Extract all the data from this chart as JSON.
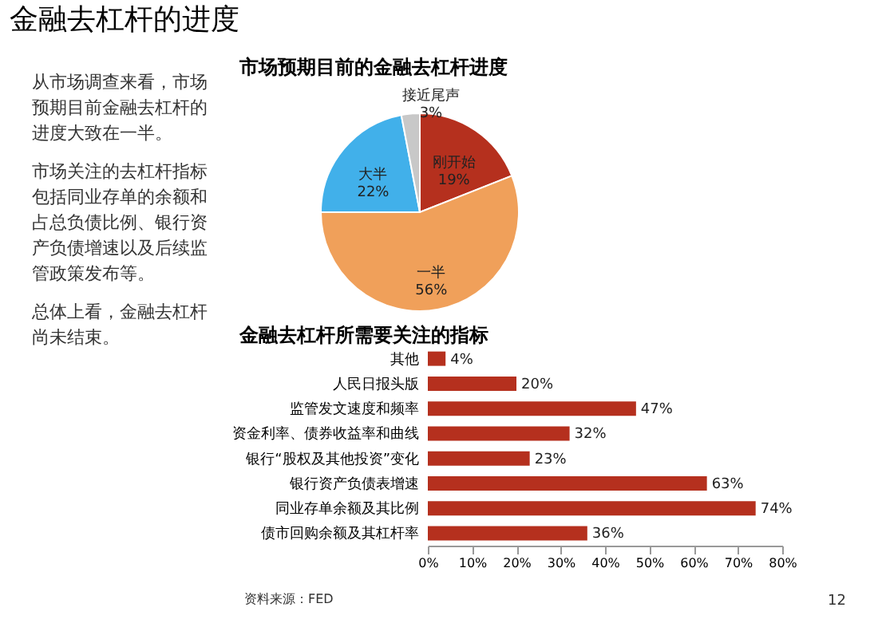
{
  "chart_data": [
    {
      "type": "other",
      "title": "金融去杠杆的进度",
      "annotations": [
        "从市场调查来看，市场预期目前金融去杠杆的进度大致在一半。",
        "市场关注的去杠杆指标包括同业存单的余额和占总负债比例、银行资产负债增速以及后续监管政策发布等。",
        "总体上看，金融去杠杆尚未结束。"
      ]
    },
    {
      "type": "pie",
      "title": "市场预期目前的金融去杠杆进度",
      "categories": [
        "刚开始",
        "一半",
        "大半",
        "接近尾声"
      ],
      "values": [
        19,
        56,
        22,
        3
      ],
      "colors": [
        "#b5301e",
        "#f0a05a",
        "#41b0ea",
        "#c8c8c8"
      ],
      "value_labels": [
        "19%",
        "56%",
        "22%",
        "3%"
      ]
    },
    {
      "type": "bar",
      "orientation": "horizontal",
      "title": "金融去杠杆所需要关注的指标",
      "categories": [
        "其他",
        "人民日报头版",
        "监管发文速度和频率",
        "资金利率、债券收益率和曲线",
        "银行“股权及其他投资”变化",
        "银行资产负债表增速",
        "同业存单余额及其比例",
        "债市回购余额及其杠杆率"
      ],
      "values": [
        4,
        20,
        47,
        32,
        23,
        63,
        74,
        36
      ],
      "color": "#b5301e",
      "value_labels": [
        "4%",
        "20%",
        "47%",
        "32%",
        "23%",
        "63%",
        "74%",
        "36%"
      ],
      "xlim": [
        0,
        80
      ],
      "xticks": [
        {
          "value": 0,
          "label": "0%"
        },
        {
          "value": 10,
          "label": "10%"
        },
        {
          "value": 20,
          "label": "20%"
        },
        {
          "value": 30,
          "label": "30%"
        },
        {
          "value": 40,
          "label": "40%"
        },
        {
          "value": 50,
          "label": "50%"
        },
        {
          "value": 60,
          "label": "60%"
        },
        {
          "value": 70,
          "label": "70%"
        },
        {
          "value": 80,
          "label": "80%"
        }
      ],
      "grid": false,
      "annotations": [
        "资料来源：FED",
        "12"
      ]
    }
  ]
}
